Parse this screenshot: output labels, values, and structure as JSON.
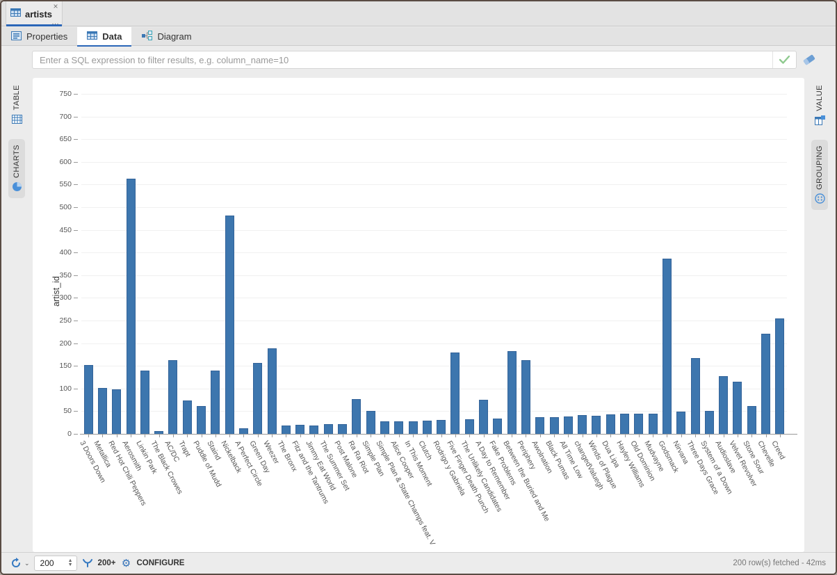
{
  "window": {
    "tab": {
      "title": "artists",
      "close_icon": "×",
      "overflow_icon": "…"
    },
    "subtabs": [
      {
        "label": "Properties"
      },
      {
        "label": "Data"
      },
      {
        "label": "Diagram"
      }
    ]
  },
  "filter": {
    "placeholder": "Enter a SQL expression to filter results, e.g. column_name=10"
  },
  "left_rail": {
    "items": [
      {
        "label": "TABLE"
      },
      {
        "label": "CHARTS"
      }
    ]
  },
  "right_rail": {
    "items": [
      {
        "label": "VALUE"
      },
      {
        "label": "GROUPING"
      }
    ]
  },
  "statusbar": {
    "fetch_size": "200",
    "fetch_more_label": "200+",
    "configure_label": "CONFIGURE",
    "gear_glyph": "⚙",
    "chevron_glyph": "⌄",
    "step_up_glyph": "▲",
    "step_down_glyph": "▼",
    "status_right": "200 row(s) fetched - 42ms"
  },
  "chart_data": {
    "type": "bar",
    "title": "",
    "xlabel": "",
    "ylabel": "artist_id",
    "ylim": [
      0,
      770
    ],
    "ytick_step": 50,
    "ytick_max": 750,
    "grid": true,
    "legend": false,
    "bar_color": "#3d76ae",
    "categories": [
      "3 Doors Down",
      "Metallica",
      "Red Hot Chili Peppers",
      "Aerosmith",
      "Linkin Park",
      "The Black Crowes",
      "AC/DC",
      "Trapt",
      "Puddle of Mudd",
      "Staind",
      "Nickelback",
      "A Perfect Circle",
      "Green Day",
      "Weezer",
      "The Bronx",
      "Fitz and the Tantrums",
      "Jimmy Eat World",
      "The Summer Set",
      "Post Malone",
      "Ra Ra Riot",
      "Simple Plan",
      "Simple Plan & State Champs feat. V",
      "Alice Cooper",
      "In This Moment",
      "Clutch",
      "Rodrigo y Gabriela",
      "Five Finger Death Punch",
      "The Unlikely Candidates",
      "A Day to Remember",
      "Fake Problems",
      "Between the Buried and Me",
      "Periphery",
      "Awolnation",
      "Black Pumas",
      "All Time Low",
      "changedValuegh",
      "Winds of Plague",
      "Dua Lipa",
      "Hayley Williams",
      "Old Dominion",
      "Mudvayne",
      "Godsmack",
      "Nirvana",
      "Three Days Grace",
      "System of a Down",
      "Audioslave",
      "Velvet Revolver",
      "Stone Sour",
      "Chevelle",
      "Creed"
    ],
    "values": [
      152,
      101,
      98,
      563,
      140,
      6,
      163,
      74,
      62,
      140,
      481,
      13,
      157,
      189,
      18,
      20,
      19,
      21,
      22,
      77,
      51,
      27,
      28,
      27,
      29,
      31,
      179,
      32,
      75,
      34,
      182,
      162,
      37,
      37,
      39,
      41,
      40,
      43,
      44,
      44,
      45,
      387,
      49,
      167,
      51,
      128,
      115,
      62,
      221,
      255
    ]
  }
}
